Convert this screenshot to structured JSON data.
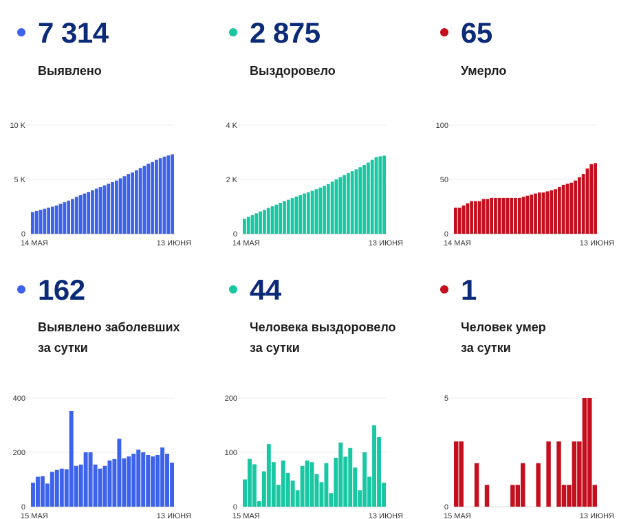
{
  "panels": [
    {
      "value": "7 314",
      "label_lines": [
        "Выявлено"
      ],
      "color": "#3d63eb",
      "chart_data": {
        "type": "bar",
        "yticks": [
          {
            "value": 10000,
            "label": "10 K"
          },
          {
            "value": 5000,
            "label": "5 K"
          },
          {
            "value": 0,
            "label": "0"
          }
        ],
        "ylim": [
          0,
          10000
        ],
        "x_start_label": "14 МАЯ",
        "x_end_label": "13 ИЮНЯ",
        "values": [
          2000,
          2100,
          2200,
          2300,
          2400,
          2500,
          2600,
          2750,
          2900,
          3050,
          3200,
          3400,
          3550,
          3700,
          3850,
          4000,
          4150,
          4300,
          4450,
          4600,
          4750,
          4900,
          5100,
          5300,
          5500,
          5650,
          5850,
          6050,
          6250,
          6450,
          6600,
          6800,
          6950,
          7100,
          7200,
          7314
        ]
      }
    },
    {
      "value": "2 875",
      "label_lines": [
        "Выздоровело"
      ],
      "color": "#19c7a3",
      "chart_data": {
        "type": "bar",
        "yticks": [
          {
            "value": 4000,
            "label": "4 K"
          },
          {
            "value": 2000,
            "label": "2 K"
          },
          {
            "value": 0,
            "label": "0"
          }
        ],
        "ylim": [
          0,
          4000
        ],
        "x_start_label": "14 МАЯ",
        "x_end_label": "13 ИЮНЯ",
        "values": [
          550,
          620,
          680,
          750,
          820,
          880,
          950,
          1010,
          1070,
          1140,
          1200,
          1250,
          1310,
          1370,
          1420,
          1480,
          1530,
          1580,
          1640,
          1700,
          1760,
          1830,
          1920,
          2000,
          2080,
          2160,
          2230,
          2300,
          2370,
          2450,
          2530,
          2620,
          2720,
          2820,
          2850,
          2875
        ]
      }
    },
    {
      "value": "65",
      "label_lines": [
        "Умерло"
      ],
      "color": "#c4101e",
      "chart_data": {
        "type": "bar",
        "yticks": [
          {
            "value": 100,
            "label": "100"
          },
          {
            "value": 50,
            "label": "50"
          },
          {
            "value": 0,
            "label": "0"
          }
        ],
        "ylim": [
          0,
          100
        ],
        "x_start_label": "14 МАЯ",
        "x_end_label": "13 ИЮНЯ",
        "values": [
          24,
          24,
          26,
          28,
          30,
          30,
          30,
          32,
          32,
          33,
          33,
          33,
          33,
          33,
          33,
          33,
          33,
          34,
          35,
          36,
          37,
          38,
          38,
          39,
          40,
          41,
          43,
          45,
          46,
          47,
          49,
          52,
          55,
          60,
          64,
          65
        ]
      }
    },
    {
      "value": "162",
      "label_lines": [
        "Выявлено заболевших",
        "за сутки"
      ],
      "color": "#3d63eb",
      "chart_data": {
        "type": "bar",
        "yticks": [
          {
            "value": 400,
            "label": "400"
          },
          {
            "value": 200,
            "label": "200"
          },
          {
            "value": 0,
            "label": "0"
          }
        ],
        "ylim": [
          0,
          400
        ],
        "x_start_label": "15 МАЯ",
        "x_end_label": "13 ИЮНЯ",
        "values": [
          88,
          110,
          112,
          85,
          128,
          135,
          140,
          138,
          352,
          150,
          155,
          200,
          200,
          155,
          140,
          150,
          170,
          175,
          250,
          178,
          185,
          195,
          210,
          200,
          190,
          185,
          190,
          218,
          195,
          162
        ]
      }
    },
    {
      "value": "44",
      "label_lines": [
        "Человека выздоровело",
        "за сутки"
      ],
      "color": "#19c7a3",
      "chart_data": {
        "type": "bar",
        "yticks": [
          {
            "value": 200,
            "label": "200"
          },
          {
            "value": 100,
            "label": "100"
          },
          {
            "value": 0,
            "label": "0"
          }
        ],
        "ylim": [
          0,
          200
        ],
        "x_start_label": "15 МАЯ",
        "x_end_label": "13 ИЮНЯ",
        "values": [
          50,
          88,
          78,
          10,
          65,
          115,
          82,
          40,
          85,
          62,
          48,
          30,
          75,
          85,
          82,
          60,
          45,
          80,
          25,
          90,
          118,
          92,
          108,
          72,
          30,
          100,
          55,
          150,
          128,
          44
        ]
      }
    },
    {
      "value": "1",
      "label_lines": [
        "Человек умер",
        "за сутки"
      ],
      "color": "#c4101e",
      "chart_data": {
        "type": "bar",
        "yticks": [
          {
            "value": 5,
            "label": "5"
          },
          {
            "value": 0,
            "label": "0"
          }
        ],
        "ylim": [
          0,
          5
        ],
        "x_start_label": "15 МАЯ",
        "x_end_label": "13 ИЮНЯ",
        "values": [
          3,
          3,
          0,
          0,
          2,
          0,
          1,
          0,
          0,
          0,
          0,
          1,
          1,
          2,
          0,
          0,
          2,
          0,
          3,
          0,
          3,
          1,
          1,
          3,
          3,
          5,
          5,
          1
        ]
      }
    }
  ]
}
